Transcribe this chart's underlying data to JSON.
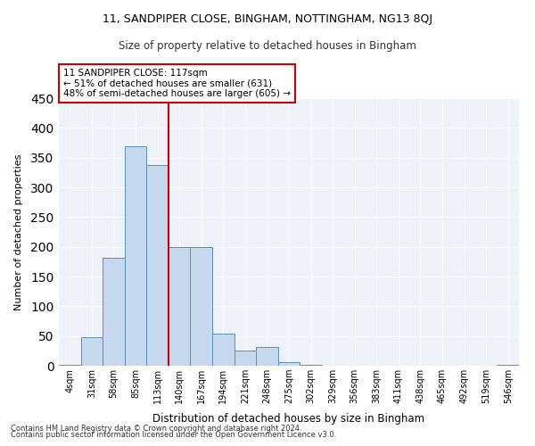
{
  "title1": "11, SANDPIPER CLOSE, BINGHAM, NOTTINGHAM, NG13 8QJ",
  "title2": "Size of property relative to detached houses in Bingham",
  "xlabel": "Distribution of detached houses by size in Bingham",
  "ylabel": "Number of detached properties",
  "bar_color": "#c5d8ed",
  "bar_edge_color": "#5a8fc0",
  "categories": [
    "4sqm",
    "31sqm",
    "58sqm",
    "85sqm",
    "113sqm",
    "140sqm",
    "167sqm",
    "194sqm",
    "221sqm",
    "248sqm",
    "275sqm",
    "302sqm",
    "329sqm",
    "356sqm",
    "383sqm",
    "411sqm",
    "438sqm",
    "465sqm",
    "492sqm",
    "519sqm",
    "546sqm"
  ],
  "values": [
    2,
    48,
    181,
    369,
    338,
    199,
    199,
    54,
    25,
    31,
    6,
    2,
    0,
    0,
    0,
    0,
    0,
    0,
    0,
    0,
    1
  ],
  "property_line_bin": 4,
  "annotation_line1": "11 SANDPIPER CLOSE: 117sqm",
  "annotation_line2": "← 51% of detached houses are smaller (631)",
  "annotation_line3": "48% of semi-detached houses are larger (605) →",
  "annotation_box_color": "#ffffff",
  "annotation_box_edge_color": "#cc0000",
  "property_line_color": "#cc0000",
  "footnote1": "Contains HM Land Registry data © Crown copyright and database right 2024.",
  "footnote2": "Contains public sector information licensed under the Open Government Licence v3.0.",
  "ylim": [
    0,
    450
  ],
  "yticks": [
    0,
    50,
    100,
    150,
    200,
    250,
    300,
    350,
    400,
    450
  ],
  "background_color": "#eef2f8",
  "grid_color": "#ffffff"
}
